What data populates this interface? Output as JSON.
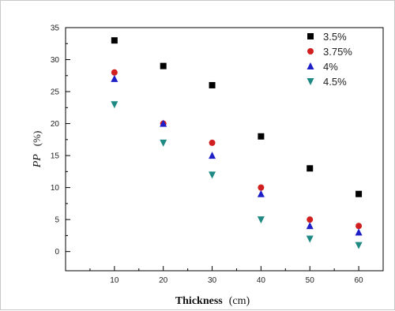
{
  "chart_data": {
    "type": "scatter",
    "xlabel": "Thickness",
    "xlabel_unit": "(cm)",
    "ylabel": "PP",
    "ylabel_unit": "(%)",
    "x": [
      10,
      20,
      30,
      40,
      50,
      60
    ],
    "xlim": [
      0,
      65
    ],
    "ylim": [
      -3,
      35
    ],
    "xticks": [
      10,
      20,
      30,
      40,
      50,
      60
    ],
    "yticks": [
      0,
      5,
      10,
      15,
      20,
      25,
      30,
      35
    ],
    "grid": false,
    "legend_position": "top-right",
    "series": [
      {
        "name": "3.5%",
        "marker": "square",
        "color": "#000000",
        "values": [
          33,
          29,
          26,
          18,
          13,
          9
        ]
      },
      {
        "name": "3.75%",
        "marker": "circle",
        "color": "#d11f1f",
        "values": [
          28,
          20,
          17,
          10,
          5,
          4
        ]
      },
      {
        "name": "4%",
        "marker": "triangle-up",
        "color": "#1f1fc8",
        "values": [
          27,
          20,
          15,
          9,
          4,
          3
        ]
      },
      {
        "name": "4.5%",
        "marker": "triangle-down",
        "color": "#1f8a84",
        "values": [
          23,
          17,
          12,
          5,
          2,
          1
        ]
      }
    ]
  }
}
